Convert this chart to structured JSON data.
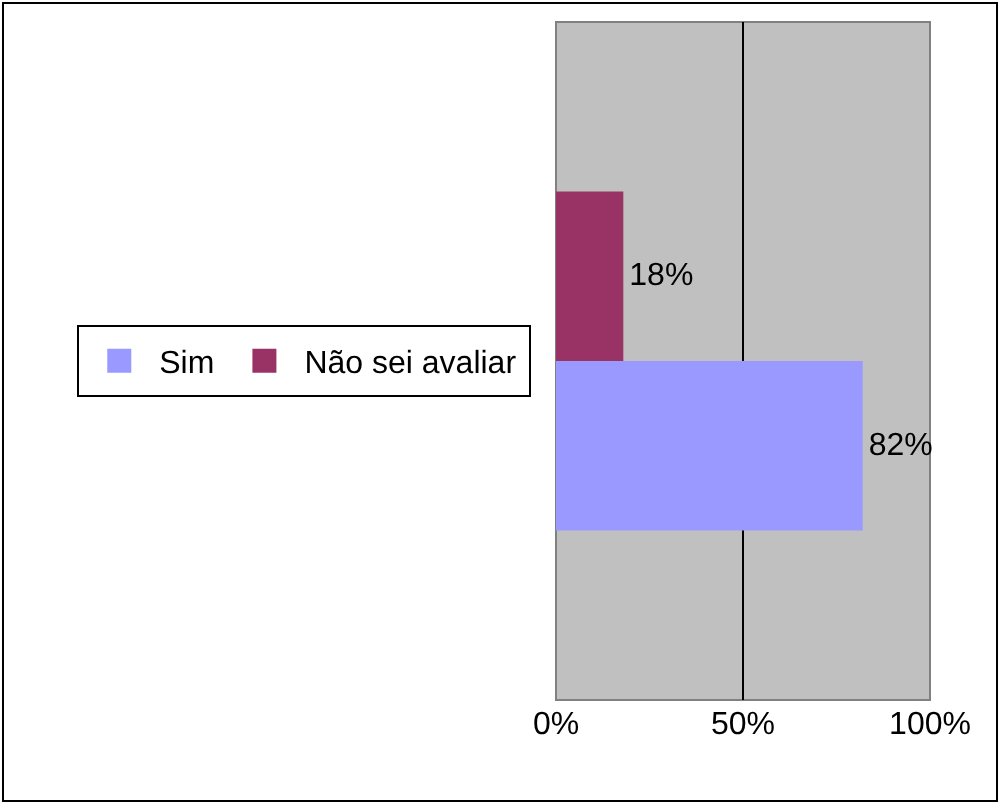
{
  "chart_data": {
    "type": "bar",
    "orientation": "horizontal",
    "categories": [
      null
    ],
    "series": [
      {
        "name": "Sim",
        "color": "#9999ff",
        "values": [
          82
        ],
        "value_labels": [
          "82%"
        ]
      },
      {
        "name": "Não sei avaliar",
        "color": "#993366",
        "values": [
          18
        ],
        "value_labels": [
          "18%"
        ]
      }
    ],
    "xlim": [
      0,
      100
    ],
    "xticks": [
      {
        "value": 0,
        "label": "0%"
      },
      {
        "value": 50,
        "label": "50%"
      },
      {
        "value": 100,
        "label": "100%"
      }
    ],
    "grid": "x",
    "legend": "left"
  }
}
